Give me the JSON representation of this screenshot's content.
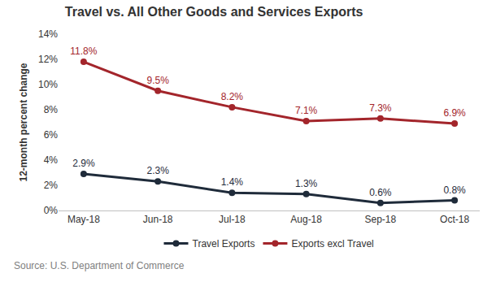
{
  "chart_data": {
    "type": "line",
    "title": "Travel vs. All Other Goods and Services Exports",
    "y_label": "12-month percent change",
    "source": "Source: U.S. Department of Commerce",
    "categories": [
      "May-18",
      "Jun-18",
      "Jul-18",
      "Aug-18",
      "Sep-18",
      "Oct-18"
    ],
    "series": [
      {
        "name": "Travel Exports",
        "color": "#1f2b3a",
        "marker": "circle",
        "line_style": "solid",
        "values": [
          2.9,
          2.3,
          1.4,
          1.3,
          0.6,
          0.8
        ],
        "value_labels": [
          "2.9%",
          "2.3%",
          "1.4%",
          "1.3%",
          "0.6%",
          "0.8%"
        ]
      },
      {
        "name": "Exports excl Travel",
        "color": "#a3252b",
        "marker": "circle",
        "line_style": "solid",
        "values": [
          11.8,
          9.5,
          8.2,
          7.1,
          7.3,
          6.9
        ],
        "value_labels": [
          "11.8%",
          "9.5%",
          "8.2%",
          "7.1%",
          "7.3%",
          "6.9%"
        ]
      }
    ],
    "ylim": [
      0,
      14
    ],
    "yticks": [
      {
        "value": 0,
        "label": "0%"
      },
      {
        "value": 2,
        "label": "2%"
      },
      {
        "value": 4,
        "label": "4%"
      },
      {
        "value": 6,
        "label": "6%"
      },
      {
        "value": 8,
        "label": "8%"
      },
      {
        "value": 10,
        "label": "10%"
      },
      {
        "value": 12,
        "label": "12%"
      },
      {
        "value": 14,
        "label": "14%"
      }
    ],
    "grid": false,
    "legend": "bottom",
    "data_labels": true
  }
}
